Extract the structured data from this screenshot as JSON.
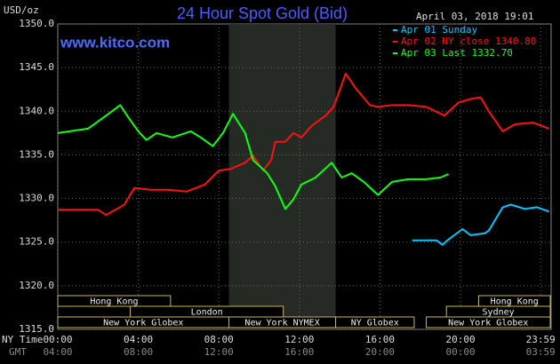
{
  "chart_data": {
    "type": "line",
    "title": "24 Hour Spot Gold (Bid)",
    "y_label": "USD/oz",
    "timestamp": "April 03, 2018 19:01",
    "watermark": "www.kitco.com",
    "x_label": "NY Time",
    "x2_label": "GMT",
    "xlim": [
      0,
      24.5
    ],
    "ylim": [
      1315,
      1350
    ],
    "xticks": [
      {
        "value": 0,
        "label": "00:00"
      },
      {
        "value": 4,
        "label": "04:00"
      },
      {
        "value": 8,
        "label": "08:00"
      },
      {
        "value": 12,
        "label": "12:00"
      },
      {
        "value": 16,
        "label": "16:00"
      },
      {
        "value": 20,
        "label": "20:00"
      },
      {
        "value": 23.98,
        "label": "23:59"
      }
    ],
    "x2tick_labels": [
      "04:00",
      "08:00",
      "12:00",
      "16:00",
      "20:00",
      "00:00",
      "03:59"
    ],
    "yticks": [
      {
        "value": 1315,
        "label": "1315.0"
      },
      {
        "value": 1320,
        "label": "1320.0"
      },
      {
        "value": 1325,
        "label": "1325.0"
      },
      {
        "value": 1330,
        "label": "1330.0"
      },
      {
        "value": 1335,
        "label": "1335.0"
      },
      {
        "value": 1340,
        "label": "1340.0"
      },
      {
        "value": 1345,
        "label": "1345.0"
      },
      {
        "value": 1350,
        "label": "1350.0"
      }
    ],
    "grid": true,
    "shaded_xrange": [
      8.5,
      13.8
    ],
    "sessions": [
      {
        "label": "Hong Kong",
        "start": 0,
        "end": 5.6,
        "row": 0
      },
      {
        "label": "London",
        "start": 3.6,
        "end": 11.2,
        "row": 1
      },
      {
        "label": "New York Globex",
        "start": 0,
        "end": 8.5,
        "row": 2
      },
      {
        "label": "New York NYMEX",
        "start": 8.5,
        "end": 13.8,
        "row": 2
      },
      {
        "label": "NY Globex",
        "start": 13.8,
        "end": 17.7,
        "row": 2
      },
      {
        "label": "Hong Kong",
        "start": 20.9,
        "end": 24.5,
        "row": 0
      },
      {
        "label": "Sydney",
        "start": 19.3,
        "end": 24.5,
        "row": 1
      },
      {
        "label": "New York Globex",
        "start": 18.3,
        "end": 24.5,
        "row": 2
      }
    ],
    "series": [
      {
        "name": "Apr 01 Sunday",
        "color": "#00c8ff",
        "x": [
          17.6,
          18.8,
          19.1,
          19.4,
          20.1,
          20.5,
          21.2,
          21.4,
          22.1,
          22.5,
          23.2,
          23.8,
          24.4
        ],
        "values": [
          1325.2,
          1325.2,
          1324.7,
          1325.3,
          1326.5,
          1325.8,
          1326,
          1326.3,
          1329,
          1329.3,
          1328.8,
          1329,
          1328.5
        ]
      },
      {
        "name": "Apr 02 NY close 1340.80",
        "color": "#ff1010",
        "x": [
          0,
          2.0,
          2.4,
          3.3,
          3.8,
          4.6,
          5.5,
          6.4,
          7.3,
          8.0,
          8.6,
          9.3,
          9.7,
          10.2,
          10.6,
          10.8,
          11.3,
          11.7,
          12.1,
          12.6,
          13.3,
          13.7,
          14.3,
          14.8,
          15.5,
          15.9,
          16.6,
          17.4,
          18.3,
          19.2,
          19.9,
          20.5,
          21.0,
          21.4,
          22.1,
          22.7,
          23.6,
          24.4
        ],
        "values": [
          1328.7,
          1328.7,
          1328.1,
          1329.3,
          1331.2,
          1331,
          1331,
          1330.8,
          1331.6,
          1333.2,
          1333.4,
          1334.1,
          1334.9,
          1333.2,
          1334.4,
          1336.5,
          1336.5,
          1337.5,
          1337,
          1338.3,
          1339.5,
          1340.5,
          1344.3,
          1342.6,
          1340.7,
          1340.5,
          1340.7,
          1340.7,
          1340.5,
          1339.5,
          1341,
          1341.4,
          1341.6,
          1340,
          1337.7,
          1338.5,
          1338.7,
          1338
        ]
      },
      {
        "name": "Apr 03 Last 1332.70",
        "color": "#10ff10",
        "x": [
          0,
          1.5,
          2.4,
          3.1,
          3.5,
          4.0,
          4.4,
          4.9,
          5.7,
          6.6,
          7.1,
          7.7,
          8.2,
          8.7,
          9.3,
          9.7,
          10.4,
          10.8,
          11.3,
          11.7,
          12.1,
          12.8,
          13.6,
          14.1,
          14.6,
          15.2,
          15.9,
          16.6,
          17.4,
          18.3,
          19.0,
          19.4
        ],
        "values": [
          1337.5,
          1338,
          1339.5,
          1340.7,
          1339.3,
          1337.7,
          1336.7,
          1337.5,
          1337,
          1337.7,
          1337,
          1336,
          1337.5,
          1339.7,
          1337.5,
          1334.4,
          1332.9,
          1331.4,
          1328.8,
          1329.9,
          1331.6,
          1332.4,
          1334.1,
          1332.4,
          1332.9,
          1331.9,
          1330.4,
          1331.9,
          1332.2,
          1332.2,
          1332.4,
          1332.8
        ]
      }
    ]
  }
}
